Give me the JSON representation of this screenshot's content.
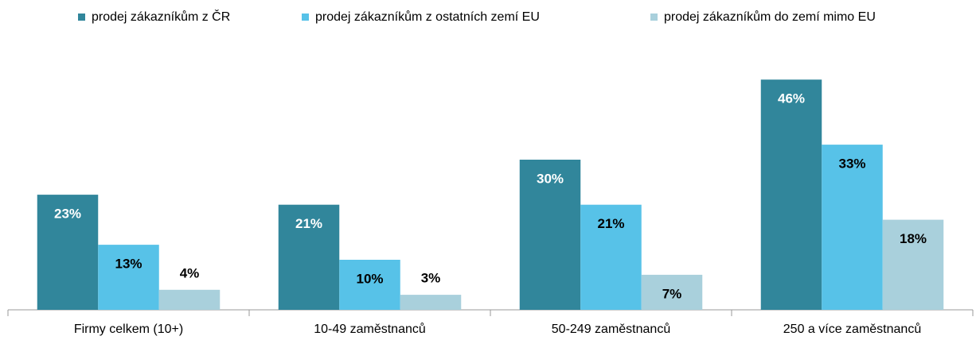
{
  "chart_data": {
    "type": "bar",
    "categories": [
      "Firmy celkem (10+)",
      "10-49 zaměstnanců",
      "50-249 zaměstnanců",
      "250 a více zaměstnanců"
    ],
    "series": [
      {
        "name": "prodej zákazníkům z ČR",
        "color": "#31869b",
        "values": [
          23,
          21,
          30,
          46
        ],
        "value_labels": [
          "23%",
          "21%",
          "30%",
          "46%"
        ]
      },
      {
        "name": "prodej zákazníkům z ostatních zemí EU",
        "color": "#57c2e8",
        "values": [
          13,
          10,
          21,
          33
        ],
        "value_labels": [
          "13%",
          "10%",
          "21%",
          "33%"
        ]
      },
      {
        "name": "prodej zákazníkům do zemí mimo EU",
        "color": "#a9d0dc",
        "values": [
          4,
          3,
          7,
          18
        ],
        "value_labels": [
          "4%",
          "3%",
          "7%",
          "18%"
        ]
      }
    ],
    "legend": "top"
  }
}
